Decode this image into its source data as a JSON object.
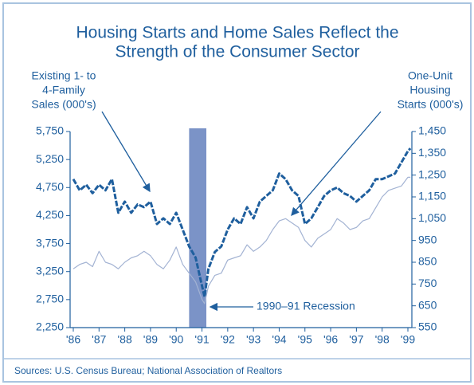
{
  "chart_data": {
    "type": "line",
    "title": [
      "Housing Starts and Home Sales Reflect the",
      "Strength of the Consumer Sector"
    ],
    "ylabel": [
      "Existing 1- to",
      "4-Family",
      "Sales (000's)"
    ],
    "y2label": [
      "One-Unit",
      "Housing",
      "Starts (000's)"
    ],
    "annotation": "1990–91 Recession",
    "source": "Sources: U.S. Census Bureau; National Association of Realtors",
    "recession": [
      1990.5,
      1991.17
    ],
    "x": [
      1986.0,
      1986.25,
      1986.5,
      1986.75,
      1987.0,
      1987.25,
      1987.5,
      1987.75,
      1988.0,
      1988.25,
      1988.5,
      1988.75,
      1989.0,
      1989.25,
      1989.5,
      1989.75,
      1990.0,
      1990.25,
      1990.5,
      1990.75,
      1991.0,
      1991.1,
      1991.25,
      1991.5,
      1991.75,
      1992.0,
      1992.25,
      1992.5,
      1992.75,
      1993.0,
      1993.25,
      1993.5,
      1993.75,
      1994.0,
      1994.25,
      1994.5,
      1994.75,
      1995.0,
      1995.25,
      1995.5,
      1995.75,
      1996.0,
      1996.25,
      1996.5,
      1996.75,
      1997.0,
      1997.25,
      1997.5,
      1997.75,
      1998.0,
      1998.25,
      1998.5,
      1998.75,
      1999.0,
      1999.1
    ],
    "series": [
      {
        "name": "Existing 1- to 4-Family Sales",
        "color": "#1f5f9e",
        "axis": "y",
        "values": [
          4900,
          4700,
          4800,
          4650,
          4800,
          4700,
          4900,
          4300,
          4500,
          4300,
          4450,
          4400,
          4500,
          4100,
          4200,
          4100,
          4300,
          4000,
          3700,
          3500,
          3000,
          2800,
          3300,
          3600,
          3700,
          4000,
          4200,
          4100,
          4400,
          4200,
          4500,
          4600,
          4700,
          5000,
          4900,
          4700,
          4600,
          4100,
          4200,
          4400,
          4600,
          4700,
          4750,
          4650,
          4600,
          4500,
          4600,
          4700,
          4900,
          4900,
          4950,
          5000,
          5200,
          5400,
          5450
        ]
      },
      {
        "name": "One-Unit Housing Starts",
        "color": "#a3b3d3",
        "axis": "y2",
        "values": [
          820,
          840,
          850,
          830,
          900,
          850,
          840,
          820,
          850,
          870,
          880,
          900,
          880,
          840,
          820,
          860,
          920,
          840,
          800,
          760,
          680,
          660,
          740,
          790,
          800,
          860,
          870,
          880,
          930,
          900,
          920,
          950,
          1000,
          1040,
          1050,
          1030,
          1010,
          950,
          920,
          960,
          980,
          1000,
          1050,
          1030,
          1000,
          1010,
          1040,
          1050,
          1100,
          1150,
          1180,
          1190,
          1200,
          1240,
          1240
        ]
      }
    ],
    "xlim": [
      1986,
      1999
    ],
    "xticks": [
      {
        "value": 1986,
        "label": "'86"
      },
      {
        "value": 1987,
        "label": "'87"
      },
      {
        "value": 1988,
        "label": "'88"
      },
      {
        "value": 1989,
        "label": "'89"
      },
      {
        "value": 1990,
        "label": "'90"
      },
      {
        "value": 1991,
        "label": "'91"
      },
      {
        "value": 1992,
        "label": "'92"
      },
      {
        "value": 1993,
        "label": "'93"
      },
      {
        "value": 1994,
        "label": "'94"
      },
      {
        "value": 1995,
        "label": "'95"
      },
      {
        "value": 1996,
        "label": "'96"
      },
      {
        "value": 1997,
        "label": "'97"
      },
      {
        "value": 1998,
        "label": "'98"
      },
      {
        "value": 1999,
        "label": "'99"
      }
    ],
    "ylim": [
      2250,
      5750
    ],
    "yticks": [
      {
        "value": 2250,
        "label": "2,250"
      },
      {
        "value": 2750,
        "label": "2,750"
      },
      {
        "value": 3250,
        "label": "3,250"
      },
      {
        "value": 3750,
        "label": "3,750"
      },
      {
        "value": 4250,
        "label": "4,250"
      },
      {
        "value": 4750,
        "label": "4,750"
      },
      {
        "value": 5250,
        "label": "5,250"
      },
      {
        "value": 5750,
        "label": "5,750"
      }
    ],
    "y2lim": [
      550,
      1450
    ],
    "y2ticks": [
      550,
      650,
      750,
      850,
      950,
      {
        "value": 1050,
        "label": "1,050"
      },
      {
        "value": 1150,
        "label": "1,150"
      },
      {
        "value": 1250,
        "label": "1,250"
      },
      {
        "value": 1350,
        "label": "1,350"
      },
      {
        "value": 1450,
        "label": "1,450"
      }
    ],
    "recession_color": "#7b93c7"
  }
}
